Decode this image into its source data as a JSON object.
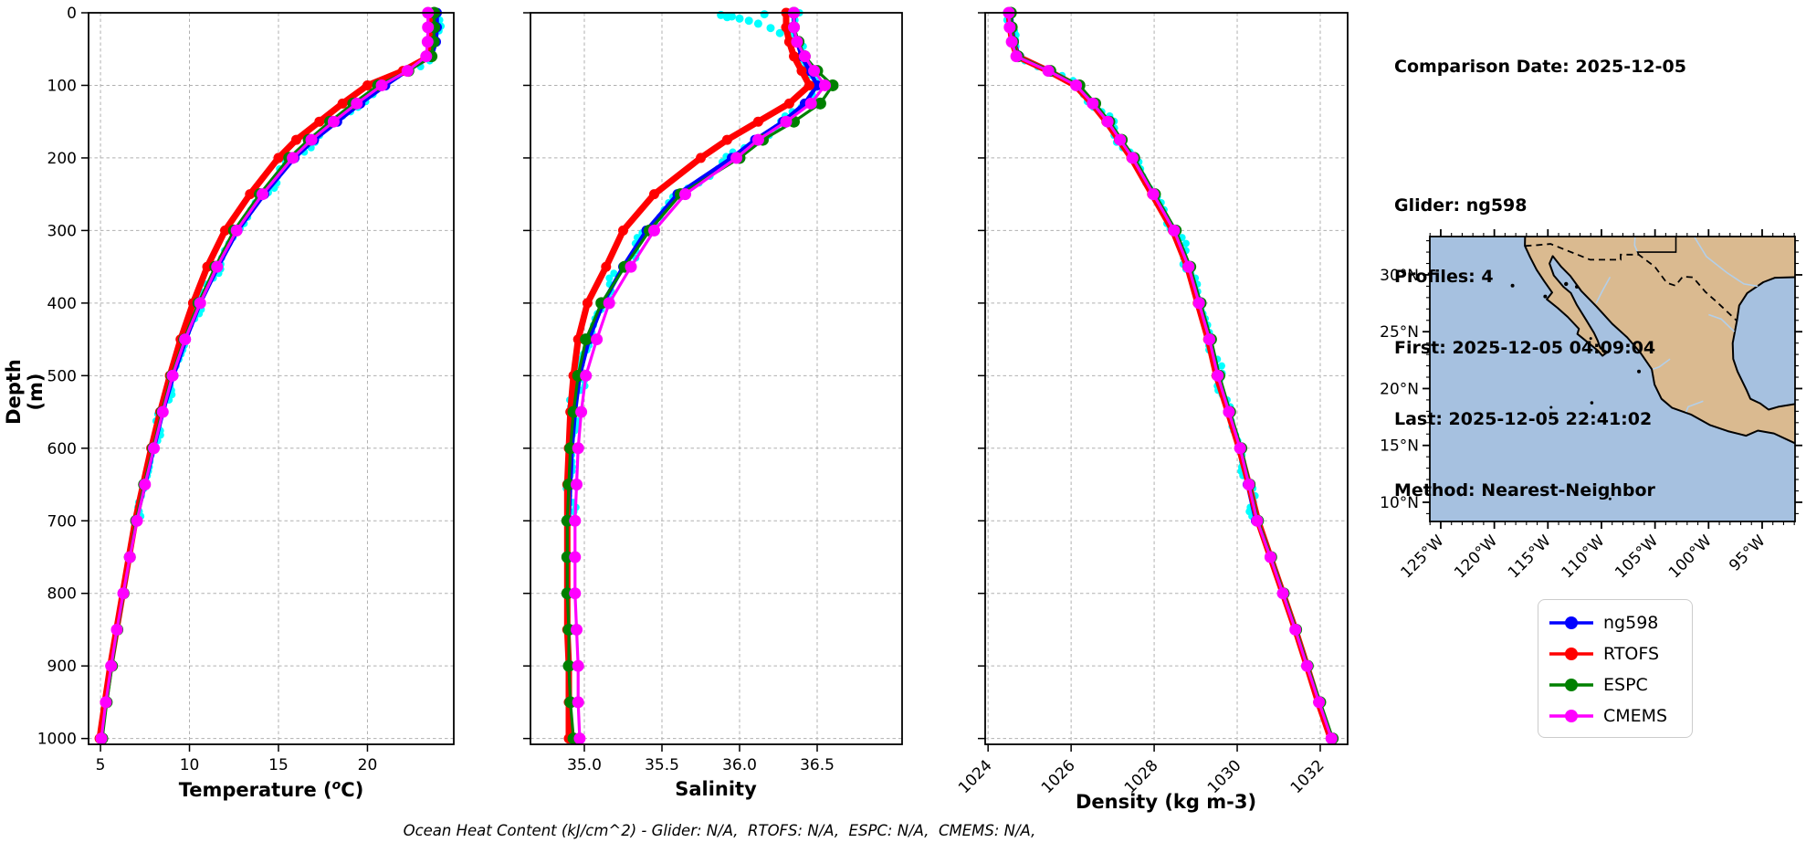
{
  "info": {
    "title": "Comparison Date: 2025-12-05",
    "lines": [
      "Glider: ng598",
      "Profiles: 4",
      "First: 2025-12-05 04:09:04",
      "Last: 2025-12-05 22:41:02",
      "Method: Nearest-Neighbor"
    ]
  },
  "legend": {
    "items": [
      {
        "label": "ng598",
        "color": "#0000ff"
      },
      {
        "label": "RTOFS",
        "color": "#ff0000"
      },
      {
        "label": "ESPC",
        "color": "#008000"
      },
      {
        "label": "CMEMS",
        "color": "#ff00ff"
      }
    ]
  },
  "footer": {
    "ohc_text": "Ocean Heat Content (kJ/cm^2) - Glider: N/A,  RTOFS: N/A,  ESPC: N/A,  CMEMS: N/A,"
  },
  "colors": {
    "glider": "#0000ff",
    "rtofs": "#ff0000",
    "espc": "#008000",
    "cmems": "#ff00ff",
    "raw": "#00ffff",
    "grid": "#b0b0b0"
  },
  "chart_data": {
    "type": "line",
    "ylabel": "Depth (m)",
    "ylim": [
      0,
      1008
    ],
    "yticks": [
      0,
      100,
      200,
      300,
      400,
      500,
      600,
      700,
      800,
      900,
      1000
    ],
    "depths_glider": [
      0,
      20,
      40,
      60,
      80,
      100,
      125,
      150,
      175,
      200,
      250,
      300,
      350,
      400,
      450,
      500,
      550,
      600,
      650,
      700
    ],
    "depths_model": [
      0,
      20,
      40,
      60,
      80,
      100,
      125,
      150,
      175,
      200,
      250,
      300,
      350,
      400,
      450,
      500,
      550,
      600,
      650,
      700,
      750,
      800,
      850,
      900,
      950,
      1000
    ],
    "plots": [
      {
        "id": "temperature",
        "xlabel": "Temperature (ᵒC)",
        "xlabel_parts": [
          "Temperature (",
          "o",
          "C)"
        ],
        "xlim": [
          4.33,
          24.85
        ],
        "xticks": [
          5,
          10,
          15,
          20
        ],
        "rotate_xticks": false,
        "raw_jitter": 0.3,
        "series": [
          {
            "name": "ng598",
            "grid": "glider",
            "values": [
              23.9,
              23.9,
              23.85,
              23.6,
              22.2,
              21.0,
              19.6,
              18.3,
              17.0,
              15.9,
              14.2,
              12.7,
              11.6,
              10.6,
              9.8,
              9.1,
              8.5,
              8.0,
              7.5,
              7.0
            ]
          },
          {
            "name": "RTOFS",
            "grid": "model",
            "values": [
              23.65,
              23.65,
              23.6,
              23.5,
              22.0,
              20.0,
              18.6,
              17.3,
              16.0,
              15.0,
              13.4,
              12.0,
              11.0,
              10.2,
              9.5,
              8.9,
              8.35,
              7.85,
              7.4,
              6.95,
              6.6,
              6.25,
              5.9,
              5.55,
              5.25,
              4.95
            ]
          },
          {
            "name": "ESPC",
            "grid": "model",
            "values": [
              23.75,
              23.75,
              23.72,
              23.6,
              22.3,
              20.6,
              19.2,
              17.9,
              16.7,
              15.6,
              13.95,
              12.5,
              11.45,
              10.5,
              9.7,
              9.0,
              8.45,
              7.95,
              7.45,
              7.0,
              6.65,
              6.3,
              5.95,
              5.65,
              5.35,
              5.1
            ]
          },
          {
            "name": "CMEMS",
            "grid": "model",
            "values": [
              23.4,
              23.4,
              23.38,
              23.3,
              22.25,
              20.8,
              19.4,
              18.1,
              16.85,
              15.8,
              14.1,
              12.65,
              11.55,
              10.6,
              9.75,
              9.05,
              8.5,
              8.0,
              7.5,
              7.05,
              6.65,
              6.28,
              5.92,
              5.6,
              5.3,
              5.05
            ]
          }
        ],
        "raw_outliers": []
      },
      {
        "id": "salinity",
        "xlabel": "Salinity",
        "xlabel_parts": [
          "Salinity",
          "",
          ""
        ],
        "xlim": [
          34.653,
          37.047
        ],
        "xticks": [
          35.0,
          35.5,
          36.0,
          36.5
        ],
        "rotate_xticks": false,
        "raw_jitter": 0.045,
        "series": [
          {
            "name": "ng598",
            "grid": "glider",
            "values": [
              36.35,
              36.35,
              36.37,
              36.4,
              36.45,
              36.5,
              36.42,
              36.28,
              36.1,
              35.95,
              35.6,
              35.4,
              35.25,
              35.12,
              35.03,
              34.97,
              34.94,
              34.92,
              34.91,
              34.9
            ]
          },
          {
            "name": "RTOFS",
            "grid": "model",
            "values": [
              36.3,
              36.3,
              36.32,
              36.35,
              36.4,
              36.45,
              36.32,
              36.12,
              35.92,
              35.75,
              35.45,
              35.25,
              35.14,
              35.02,
              34.96,
              34.93,
              34.91,
              34.9,
              34.89,
              34.89,
              34.89,
              34.89,
              34.89,
              34.9,
              34.9,
              34.9
            ]
          },
          {
            "name": "ESPC",
            "grid": "model",
            "values": [
              36.35,
              36.35,
              36.38,
              36.42,
              36.5,
              36.6,
              36.52,
              36.35,
              36.15,
              36.0,
              35.62,
              35.42,
              35.26,
              35.11,
              35.01,
              34.96,
              34.93,
              34.91,
              34.9,
              34.89,
              34.89,
              34.89,
              34.9,
              34.9,
              34.91,
              34.93
            ]
          },
          {
            "name": "CMEMS",
            "grid": "model",
            "values": [
              36.35,
              36.35,
              36.37,
              36.42,
              36.48,
              36.55,
              36.46,
              36.3,
              36.12,
              35.98,
              35.65,
              35.45,
              35.3,
              35.16,
              35.08,
              35.01,
              34.98,
              34.96,
              34.95,
              34.94,
              34.94,
              34.94,
              34.95,
              34.96,
              34.96,
              34.97
            ]
          }
        ],
        "raw_outliers": [
          [
            35.88,
            3
          ],
          [
            35.95,
            5
          ],
          [
            36.0,
            8
          ],
          [
            36.06,
            11
          ],
          [
            36.12,
            15
          ],
          [
            36.2,
            21
          ],
          [
            36.26,
            28
          ],
          [
            36.16,
            2
          ],
          [
            35.92,
            6
          ]
        ]
      },
      {
        "id": "density",
        "xlabel": "Density (kg m-3)",
        "xlabel_parts": [
          "Density (kg m-3)",
          "",
          ""
        ],
        "xlim": [
          1023.93,
          1032.66
        ],
        "xticks": [
          1024,
          1026,
          1028,
          1030,
          1032
        ],
        "rotate_xticks": true,
        "raw_jitter": 0.13,
        "series": [
          {
            "name": "ng598",
            "grid": "glider",
            "values": [
              1024.55,
              1024.58,
              1024.62,
              1024.75,
              1025.5,
              1026.15,
              1026.55,
              1026.9,
              1027.2,
              1027.5,
              1028.0,
              1028.5,
              1028.85,
              1029.1,
              1029.35,
              1029.55,
              1029.8,
              1030.05,
              1030.25,
              1030.45
            ]
          },
          {
            "name": "RTOFS",
            "grid": "model",
            "values": [
              1024.5,
              1024.53,
              1024.58,
              1024.7,
              1025.45,
              1026.1,
              1026.5,
              1026.85,
              1027.15,
              1027.45,
              1027.95,
              1028.45,
              1028.8,
              1029.05,
              1029.3,
              1029.5,
              1029.78,
              1030.05,
              1030.28,
              1030.5,
              1030.8,
              1031.1,
              1031.4,
              1031.68,
              1031.95,
              1032.25
            ]
          },
          {
            "name": "ESPC",
            "grid": "model",
            "values": [
              1024.55,
              1024.57,
              1024.6,
              1024.72,
              1025.5,
              1026.2,
              1026.58,
              1026.92,
              1027.22,
              1027.52,
              1028.02,
              1028.52,
              1028.87,
              1029.12,
              1029.37,
              1029.57,
              1029.83,
              1030.1,
              1030.3,
              1030.5,
              1030.82,
              1031.12,
              1031.42,
              1031.7,
              1032.0,
              1032.3
            ]
          },
          {
            "name": "CMEMS",
            "grid": "model",
            "values": [
              1024.5,
              1024.52,
              1024.57,
              1024.68,
              1025.45,
              1026.12,
              1026.52,
              1026.88,
              1027.18,
              1027.48,
              1027.98,
              1028.48,
              1028.83,
              1029.08,
              1029.33,
              1029.53,
              1029.8,
              1030.07,
              1030.28,
              1030.48,
              1030.8,
              1031.1,
              1031.4,
              1031.68,
              1031.97,
              1032.27
            ]
          }
        ],
        "raw_outliers": []
      }
    ]
  },
  "map": {
    "lat_tick_labels": [
      "30°N",
      "25°N",
      "20°N",
      "15°N",
      "10°N"
    ],
    "lat_tick_values": [
      30,
      25,
      20,
      15,
      10
    ],
    "lon_tick_labels": [
      "125°W",
      "120°W",
      "115°W",
      "110°W",
      "105°W",
      "100°W",
      "95°W"
    ],
    "lon_tick_values": [
      -125,
      -120,
      -115,
      -110,
      -105,
      -100,
      -95
    ],
    "extent": {
      "lon": [
        -126.02,
        -91.93
      ],
      "lat": [
        8.31,
        33.37
      ]
    },
    "colors": {
      "ocean": "#a6c1e0",
      "land": "#daba90",
      "coast": "#000000",
      "river": "#b3cfe9",
      "border": "#000000"
    }
  }
}
